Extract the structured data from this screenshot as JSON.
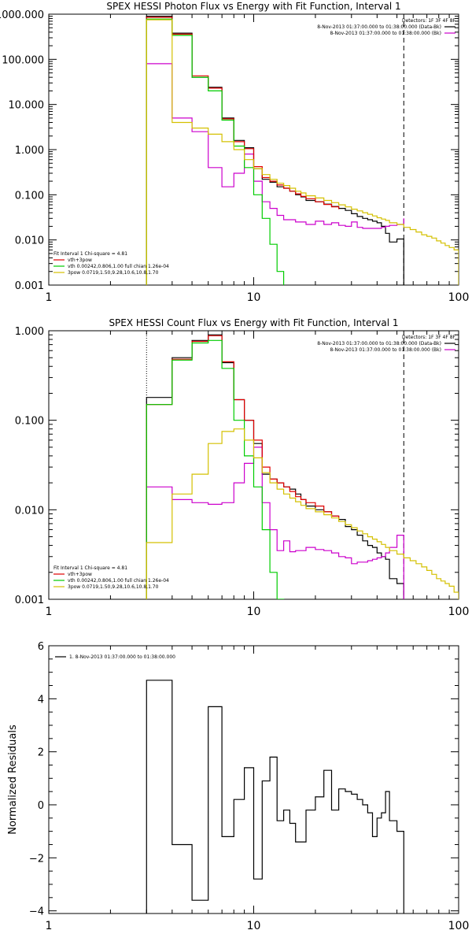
{
  "chart_data": [
    {
      "type": "line",
      "title": "SPEX HESSI Photon Flux vs Energy with Fit Function, Interval 1",
      "xscale": "log",
      "yscale": "log",
      "xlim": [
        1,
        100
      ],
      "ylim": [
        0.001,
        1000
      ],
      "xticks": [
        1,
        10,
        100
      ],
      "xtick_labels": [
        "1",
        "10",
        "100"
      ],
      "yticks": [
        0.001,
        0.01,
        0.1,
        1,
        10,
        100,
        1000
      ],
      "ytick_labels": [
        "0.001",
        "0.010",
        "0.100",
        "1.000",
        "10.000",
        "100.000",
        "1000.000"
      ],
      "vlines": [
        {
          "x": 3,
          "style": "dotted",
          "color": "#000000"
        },
        {
          "x": 54,
          "style": "dashed",
          "color": "#000000"
        }
      ],
      "legend_right": {
        "header": "Detectors: 1F 3F 4F 8F",
        "entries": [
          {
            "label": "8-Nov-2013 01:37:00.000 to 01:38:00.000 (Data-Bk)",
            "color": "#000000"
          },
          {
            "label": "8-Nov-2013 01:37:00.000 to 01:38:00.000 (Bk)",
            "color": "#cc00cc"
          }
        ]
      },
      "legend_left": {
        "header": "Fit Interval 1    Chi-square = 4.81",
        "entries": [
          {
            "label": "vth+3pow",
            "color": "#e00000"
          },
          {
            "label": "vth 0.00242,0.806,1.00   full chian 1.26e-04",
            "color": "#00cc00"
          },
          {
            "label": "3pow 0.0719,1.50,9.28,10.6,10.8,1.70",
            "color": "#d4c000"
          }
        ]
      },
      "series": [
        {
          "name": "Data-Bk",
          "color": "#000000",
          "edges": [
            3,
            4,
            5,
            6,
            7,
            8,
            9,
            10,
            11,
            12,
            13,
            14,
            15,
            16,
            17,
            18,
            20,
            22,
            24,
            26,
            28,
            30,
            32,
            34,
            36,
            38,
            40,
            42,
            44,
            46,
            50,
            54
          ],
          "values": [
            900,
            380,
            40,
            24,
            5,
            1.6,
            1.1,
            0.38,
            0.22,
            0.19,
            0.15,
            0.14,
            0.12,
            0.1,
            0.09,
            0.075,
            0.07,
            0.062,
            0.055,
            0.05,
            0.045,
            0.038,
            0.033,
            0.03,
            0.028,
            0.026,
            0.024,
            0.02,
            0.014,
            0.009,
            0.0105
          ]
        },
        {
          "name": "Bk",
          "color": "#cc00cc",
          "edges": [
            3,
            4,
            5,
            6,
            7,
            8,
            9,
            10,
            11,
            12,
            13,
            14,
            16,
            18,
            20,
            22,
            24,
            26,
            28,
            30,
            32,
            34,
            36,
            38,
            40,
            42,
            44,
            46,
            50,
            54
          ],
          "values": [
            80,
            5,
            2.5,
            0.4,
            0.15,
            0.3,
            0.8,
            0.2,
            0.07,
            0.05,
            0.035,
            0.028,
            0.025,
            0.022,
            0.026,
            0.022,
            0.024,
            0.021,
            0.02,
            0.025,
            0.019,
            0.018,
            0.018,
            0.018,
            0.018,
            0.019,
            0.02,
            0.021,
            0.022,
            0.03
          ]
        },
        {
          "name": "vth+3pow",
          "color": "#e00000",
          "edges": [
            3,
            4,
            5,
            6,
            7,
            8,
            9,
            10,
            11,
            12,
            13,
            14,
            15,
            16,
            17,
            18,
            20,
            22,
            24,
            26
          ],
          "values": [
            850,
            360,
            43,
            23,
            4.8,
            1.5,
            1.05,
            0.42,
            0.24,
            0.2,
            0.165,
            0.14,
            0.12,
            0.105,
            0.092,
            0.082,
            0.07,
            0.061,
            0.054,
            0.048
          ]
        },
        {
          "name": "vth",
          "color": "#00cc00",
          "edges": [
            3,
            4,
            5,
            6,
            7,
            8,
            9,
            10,
            11,
            12,
            13,
            14
          ],
          "values": [
            780,
            340,
            40,
            20,
            4.5,
            1.2,
            0.4,
            0.1,
            0.03,
            0.008,
            0.002
          ]
        },
        {
          "name": "3pow",
          "color": "#d4c000",
          "edges": [
            3,
            4,
            5,
            6,
            7,
            8,
            9,
            10,
            11,
            12,
            13,
            14,
            15,
            16,
            17,
            18,
            20,
            22,
            24,
            26,
            28,
            30,
            32,
            34,
            36,
            38,
            40,
            42,
            44,
            46,
            50,
            54,
            58,
            62,
            66,
            70,
            74,
            78,
            82,
            86,
            90,
            95,
            100
          ],
          "values": [
            750,
            4,
            3,
            2.2,
            1.5,
            1,
            0.6,
            0.38,
            0.28,
            0.22,
            0.18,
            0.16,
            0.14,
            0.12,
            0.11,
            0.095,
            0.085,
            0.075,
            0.067,
            0.06,
            0.054,
            0.048,
            0.044,
            0.04,
            0.037,
            0.034,
            0.031,
            0.029,
            0.027,
            0.024,
            0.022,
            0.019,
            0.017,
            0.015,
            0.013,
            0.012,
            0.011,
            0.0095,
            0.0085,
            0.0075,
            0.0068,
            0.006
          ]
        }
      ]
    },
    {
      "type": "line",
      "title": "SPEX HESSI Count Flux vs Energy with Fit Function, Interval 1",
      "xscale": "log",
      "yscale": "log",
      "xlim": [
        1,
        100
      ],
      "ylim": [
        0.001,
        1
      ],
      "xticks": [
        1,
        10,
        100
      ],
      "xtick_labels": [
        "1",
        "10",
        "100"
      ],
      "yticks": [
        0.001,
        0.01,
        0.1,
        1
      ],
      "ytick_labels": [
        "0.001",
        "0.010",
        "0.100",
        "1.000"
      ],
      "vlines": [
        {
          "x": 3,
          "style": "dotted",
          "color": "#000000"
        },
        {
          "x": 54,
          "style": "dashed",
          "color": "#000000"
        }
      ],
      "legend_right": {
        "header": "Detectors: 1F 3F 4F 8F",
        "entries": [
          {
            "label": "8-Nov-2013 01:37:00.000 to 01:38:00.000 (Data-Bk)",
            "color": "#000000"
          },
          {
            "label": "8-Nov-2013 01:37:00.000 to 01:38:00.000 (Bk)",
            "color": "#cc00cc"
          }
        ]
      },
      "legend_left": {
        "header": "Fit Interval 1    Chi-square = 4.81",
        "entries": [
          {
            "label": "vth+3pow",
            "color": "#e00000"
          },
          {
            "label": "vth 0.00242,0.806,1.00   full chian 1.26e-04",
            "color": "#00cc00"
          },
          {
            "label": "3pow 0.0719,1.50,9.28,10.6,10.8,1.70",
            "color": "#d4c000"
          }
        ]
      },
      "series": [
        {
          "name": "Data-Bk",
          "color": "#000000",
          "edges": [
            3,
            4,
            5,
            6,
            7,
            8,
            9,
            10,
            11,
            12,
            13,
            14,
            15,
            16,
            17,
            18,
            20,
            22,
            24,
            26,
            28,
            30,
            32,
            34,
            36,
            38,
            40,
            42,
            44,
            46,
            50,
            54
          ],
          "values": [
            0.18,
            0.5,
            0.78,
            0.9,
            0.44,
            0.17,
            0.1,
            0.055,
            0.025,
            0.022,
            0.02,
            0.018,
            0.017,
            0.015,
            0.013,
            0.011,
            0.01,
            0.0095,
            0.0085,
            0.0078,
            0.0065,
            0.006,
            0.0052,
            0.0045,
            0.004,
            0.0038,
            0.0033,
            0.003,
            0.0028,
            0.0017,
            0.0015
          ]
        },
        {
          "name": "Bk",
          "color": "#cc00cc",
          "edges": [
            3,
            4,
            5,
            6,
            7,
            8,
            9,
            10,
            11,
            12,
            13,
            14,
            15,
            16,
            18,
            20,
            22,
            24,
            26,
            28,
            30,
            32,
            34,
            36,
            38,
            40,
            42,
            44,
            46,
            50,
            54
          ],
          "values": [
            0.018,
            0.013,
            0.012,
            0.0115,
            0.012,
            0.02,
            0.033,
            0.05,
            0.012,
            0.006,
            0.0035,
            0.0045,
            0.0034,
            0.0035,
            0.0038,
            0.0036,
            0.0035,
            0.0033,
            0.003,
            0.0029,
            0.0025,
            0.0026,
            0.0026,
            0.0027,
            0.0028,
            0.0029,
            0.003,
            0.0033,
            0.0038,
            0.0052
          ]
        },
        {
          "name": "vth+3pow",
          "color": "#e00000",
          "edges": [
            3,
            4,
            5,
            6,
            7,
            8,
            9,
            10,
            11,
            12,
            13,
            14,
            15,
            16,
            17,
            18,
            20,
            22,
            24,
            26
          ],
          "values": [
            0.15,
            0.48,
            0.76,
            0.88,
            0.45,
            0.17,
            0.1,
            0.06,
            0.03,
            0.022,
            0.02,
            0.018,
            0.016,
            0.014,
            0.013,
            0.012,
            0.011,
            0.0095,
            0.0085,
            0.0078
          ]
        },
        {
          "name": "vth",
          "color": "#00cc00",
          "edges": [
            3,
            4,
            5,
            6,
            7,
            8,
            9,
            10,
            11,
            12,
            13,
            14
          ],
          "values": [
            0.15,
            0.47,
            0.73,
            0.78,
            0.38,
            0.1,
            0.04,
            0.018,
            0.006,
            0.002,
            0.001
          ]
        },
        {
          "name": "3pow",
          "color": "#d4c000",
          "edges": [
            3,
            4,
            5,
            6,
            7,
            8,
            9,
            10,
            11,
            12,
            13,
            14,
            15,
            16,
            17,
            18,
            20,
            22,
            24,
            26,
            28,
            30,
            32,
            34,
            36,
            38,
            40,
            42,
            44,
            46,
            50,
            54,
            58,
            62,
            66,
            70,
            74,
            78,
            82,
            86,
            90,
            95,
            100
          ],
          "values": [
            0.0043,
            0.015,
            0.025,
            0.055,
            0.075,
            0.08,
            0.06,
            0.038,
            0.026,
            0.02,
            0.017,
            0.015,
            0.0135,
            0.0123,
            0.0112,
            0.0103,
            0.0095,
            0.0088,
            0.0081,
            0.0074,
            0.0068,
            0.0063,
            0.0058,
            0.0054,
            0.005,
            0.0047,
            0.0044,
            0.0041,
            0.0038,
            0.0035,
            0.0032,
            0.0029,
            0.0027,
            0.0025,
            0.0023,
            0.0021,
            0.0019,
            0.0017,
            0.0016,
            0.0015,
            0.0014,
            0.0012
          ]
        }
      ]
    },
    {
      "type": "line",
      "title": "",
      "ylabel": "Normalized Residuals",
      "xscale": "log",
      "yscale": "linear",
      "xlim": [
        1,
        100
      ],
      "ylim": [
        -4.1,
        6
      ],
      "xticks": [
        1,
        10,
        100
      ],
      "xtick_labels": [
        "1",
        "10",
        "100"
      ],
      "yticks": [
        -4,
        -2,
        0,
        2,
        4,
        6
      ],
      "ytick_labels": [
        "−4",
        "−2",
        "0",
        "2",
        "4",
        "6"
      ],
      "legend": {
        "entries": [
          {
            "label": "1.  8-Nov-2013 01:37:00.000 to 01:38:00.000",
            "color": "#000000"
          }
        ]
      },
      "series": [
        {
          "name": "1.",
          "color": "#000000",
          "edges": [
            3,
            4,
            5,
            6,
            7,
            8,
            9,
            10,
            11,
            12,
            13,
            14,
            15,
            16,
            18,
            20,
            22,
            24,
            26,
            28,
            30,
            32,
            34,
            36,
            38,
            40,
            42,
            44,
            46,
            50,
            54
          ],
          "values": [
            4.7,
            -1.5,
            -3.6,
            3.7,
            -1.2,
            0.2,
            1.4,
            -2.8,
            0.9,
            1.8,
            -0.6,
            -0.2,
            -0.7,
            -1.4,
            -0.2,
            0.3,
            1.3,
            -0.2,
            0.6,
            0.5,
            0.4,
            0.2,
            0.0,
            -0.3,
            -1.2,
            -0.5,
            -0.3,
            0.5,
            -0.6,
            -1.0
          ]
        }
      ]
    }
  ]
}
